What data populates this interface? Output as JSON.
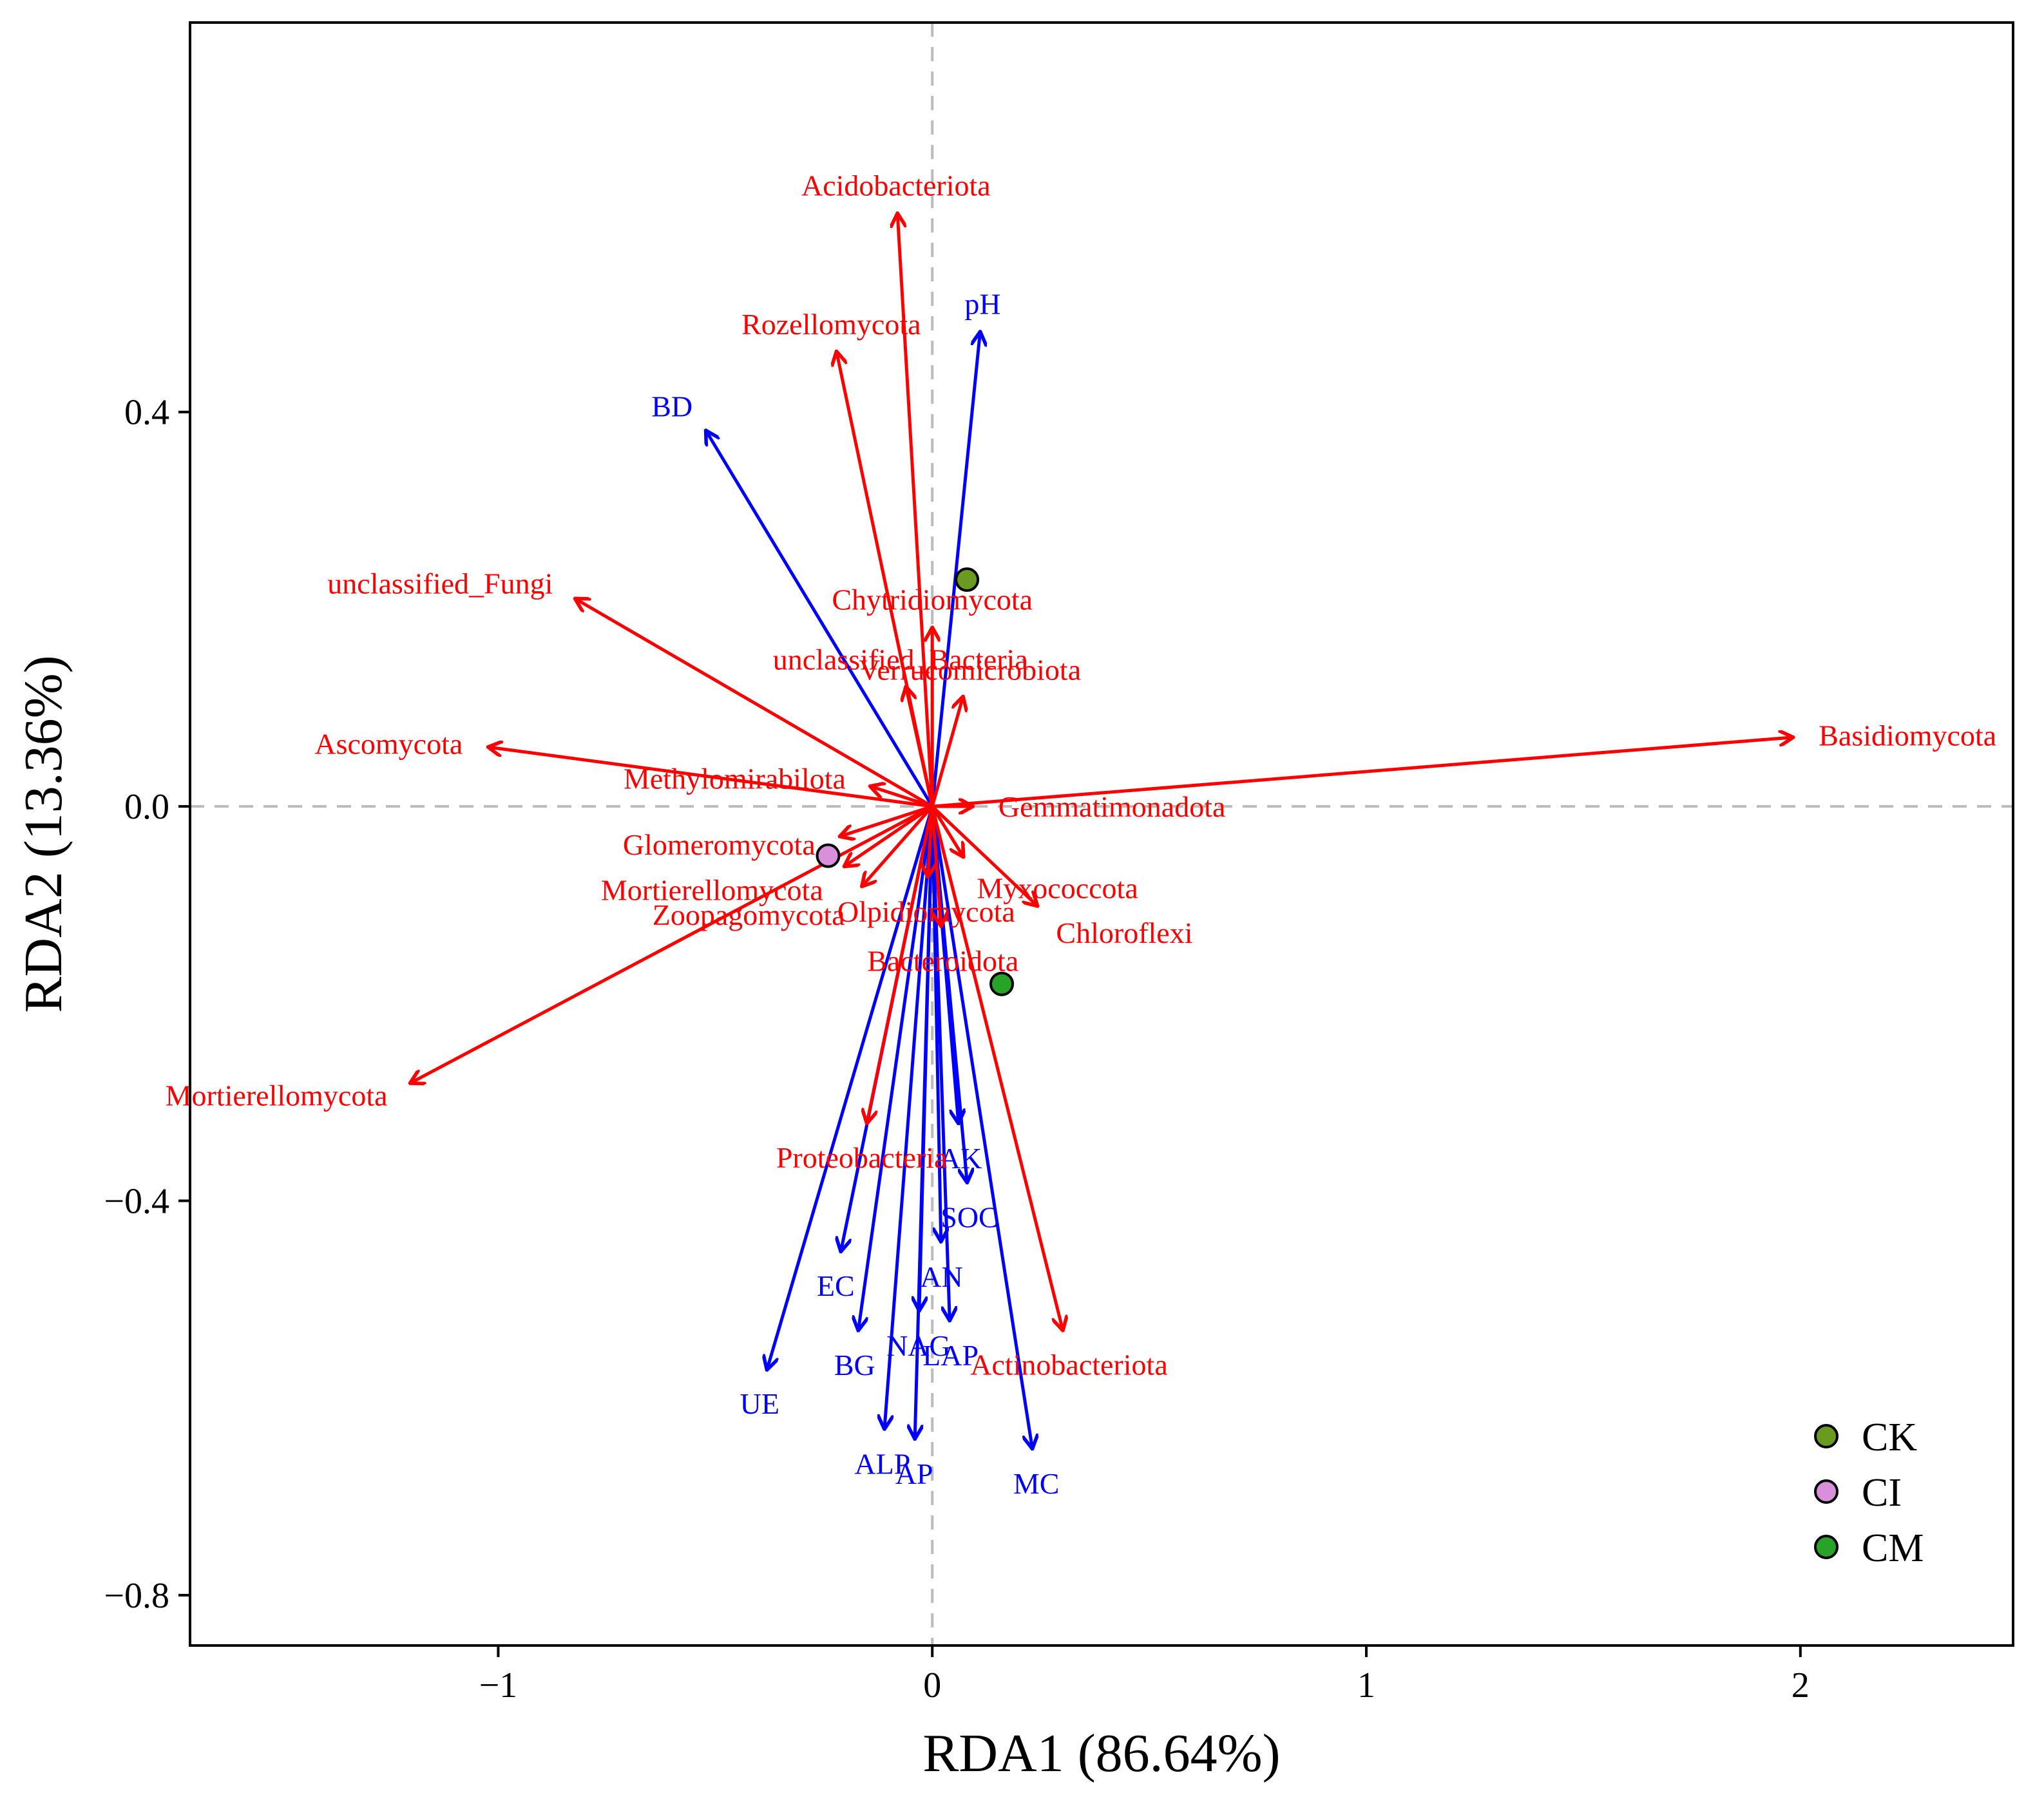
{
  "chart_data": {
    "type": "scatter",
    "subtype": "rda-biplot",
    "title": "",
    "xlabel": "RDA1 (86.64%)",
    "ylabel": "RDA2 (13.36%)",
    "xlim": [
      -1.71,
      2.49
    ],
    "ylim": [
      -0.851,
      0.795
    ],
    "xticks": [
      {
        "value": -1,
        "label": "−1"
      },
      {
        "value": 0,
        "label": "0"
      },
      {
        "value": 1,
        "label": "1"
      },
      {
        "value": 2,
        "label": "2"
      }
    ],
    "yticks": [
      {
        "value": 0.4,
        "label": "0.4"
      },
      {
        "value": 0.0,
        "label": "0.0"
      },
      {
        "value": -0.4,
        "label": "−0.4"
      },
      {
        "value": -0.8,
        "label": "−0.8"
      }
    ],
    "reference_lines": {
      "x": 0,
      "y": 0,
      "style": "dashed",
      "color": "#bbbbbb"
    },
    "colors": {
      "species": "#ff0000",
      "environment": "#0000ff",
      "frame": "#000000"
    },
    "species_vectors": [
      {
        "name": "Acidobacteriota",
        "x": -0.08,
        "y": 0.6
      },
      {
        "name": "Rozellomycota",
        "x": -0.22,
        "y": 0.46
      },
      {
        "name": "unclassified_Fungi",
        "x": -0.82,
        "y": 0.21
      },
      {
        "name": "Ascomycota",
        "x": -1.02,
        "y": 0.06
      },
      {
        "name": "Chytridiomycota",
        "x": 0.0,
        "y": 0.18
      },
      {
        "name": "unclassified_Bacteria",
        "x": -0.06,
        "y": 0.12
      },
      {
        "name": "Verrucomicrobiota",
        "x": 0.07,
        "y": 0.11
      },
      {
        "name": "Methylomirabilota",
        "x": -0.14,
        "y": 0.02
      },
      {
        "name": "Basidiomycota",
        "x": 1.98,
        "y": 0.07
      },
      {
        "name": "Gemmatimonadota",
        "x": 0.09,
        "y": 0.0
      },
      {
        "name": "Glomeromycota",
        "x": -0.21,
        "y": -0.03
      },
      {
        "name": "Mortierellomycota",
        "x": -0.2,
        "y": -0.06
      },
      {
        "name": "Zoopagomycota",
        "x": -0.16,
        "y": -0.08
      },
      {
        "name": "Myxococcota",
        "x": 0.07,
        "y": -0.05
      },
      {
        "name": "Olpidiomycota",
        "x": -0.01,
        "y": -0.07
      },
      {
        "name": "Chloroflexi",
        "x": 0.24,
        "y": -0.1
      },
      {
        "name": "Bacteroidota",
        "x": 0.02,
        "y": -0.12
      },
      {
        "name": "Mortierellomycota",
        "x": -1.2,
        "y": -0.28
      },
      {
        "name": "Proteobacteria",
        "x": -0.15,
        "y": -0.32
      },
      {
        "name": "Actinobacteriota",
        "x": 0.3,
        "y": -0.53
      }
    ],
    "environment_vectors": [
      {
        "name": "pH",
        "x": 0.11,
        "y": 0.48
      },
      {
        "name": "BD",
        "x": -0.52,
        "y": 0.38
      },
      {
        "name": "AK",
        "x": 0.06,
        "y": -0.32
      },
      {
        "name": "SOC",
        "x": 0.08,
        "y": -0.38
      },
      {
        "name": "EC",
        "x": -0.21,
        "y": -0.45
      },
      {
        "name": "AN",
        "x": 0.02,
        "y": -0.44
      },
      {
        "name": "NAG",
        "x": -0.03,
        "y": -0.51
      },
      {
        "name": "LAP",
        "x": 0.04,
        "y": -0.52
      },
      {
        "name": "BG",
        "x": -0.17,
        "y": -0.53
      },
      {
        "name": "UE",
        "x": -0.38,
        "y": -0.57
      },
      {
        "name": "ALP",
        "x": -0.11,
        "y": -0.63
      },
      {
        "name": "AP",
        "x": -0.04,
        "y": -0.64
      },
      {
        "name": "MC",
        "x": 0.23,
        "y": -0.65
      }
    ],
    "samples": [
      {
        "group": "CK",
        "x": 0.08,
        "y": 0.23,
        "color": "#6a9a1f"
      },
      {
        "group": "CI",
        "x": -0.24,
        "y": -0.05,
        "color": "#d98fd9"
      },
      {
        "group": "CM",
        "x": 0.16,
        "y": -0.18,
        "color": "#27a327"
      }
    ],
    "legend": {
      "position": "bottom-right",
      "entries": [
        {
          "label": "CK",
          "color": "#6a9a1f"
        },
        {
          "label": "CI",
          "color": "#d98fd9"
        },
        {
          "label": "CM",
          "color": "#27a327"
        }
      ]
    }
  }
}
